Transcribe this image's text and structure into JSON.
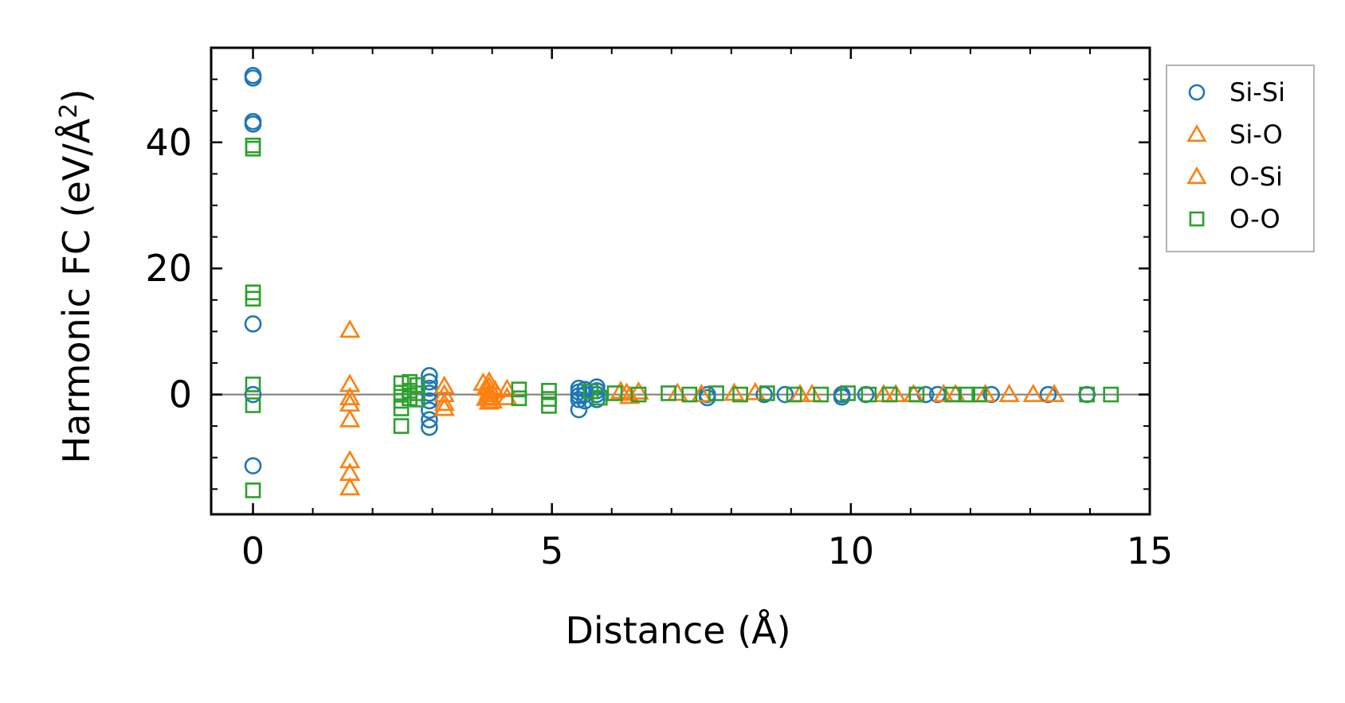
{
  "chart_data": {
    "type": "scatter",
    "title": "",
    "xlabel": "Distance (Å)",
    "ylabel_main": "Harmonic FC (eV/Å",
    "ylabel_sup": "2",
    "ylabel_close": ")",
    "xlim": [
      -0.7,
      15.0
    ],
    "ylim": [
      -19,
      55
    ],
    "xticks": [
      0,
      5,
      10,
      15
    ],
    "xtick_labels": [
      "0",
      "5",
      "10",
      "15"
    ],
    "yticks": [
      0,
      20,
      40
    ],
    "ytick_labels": [
      "0",
      "20",
      "40"
    ],
    "grid": false,
    "zero_line": true,
    "legend_position": "right, outside plot",
    "series": [
      {
        "name": "Si-Si",
        "marker": "circle",
        "color": "#1f77b4",
        "points": [
          [
            0,
            50.6
          ],
          [
            0,
            50.2
          ],
          [
            0,
            43.3
          ],
          [
            0,
            42.9
          ],
          [
            0,
            11.2
          ],
          [
            0,
            0
          ],
          [
            0,
            -11.3
          ],
          [
            2.95,
            3.0
          ],
          [
            2.95,
            2.0
          ],
          [
            2.95,
            1.0
          ],
          [
            2.95,
            0.2
          ],
          [
            2.95,
            -1.0
          ],
          [
            2.95,
            -2.5
          ],
          [
            2.95,
            -4.0
          ],
          [
            2.95,
            -5.2
          ],
          [
            5.45,
            1.0
          ],
          [
            5.45,
            0.4
          ],
          [
            5.45,
            -0.2
          ],
          [
            5.45,
            -0.8
          ],
          [
            5.45,
            -2.4
          ],
          [
            5.55,
            0.8
          ],
          [
            5.55,
            0.0
          ],
          [
            5.55,
            -1.0
          ],
          [
            5.75,
            1.2
          ],
          [
            5.75,
            0.6
          ],
          [
            5.75,
            0.0
          ],
          [
            5.75,
            -0.8
          ],
          [
            7.6,
            0.0
          ],
          [
            7.6,
            -0.5
          ],
          [
            8.55,
            0.0
          ],
          [
            8.9,
            0.0
          ],
          [
            9.85,
            0.0
          ],
          [
            9.85,
            -0.4
          ],
          [
            10.25,
            0.0
          ],
          [
            11.25,
            0.0
          ],
          [
            11.45,
            0.0
          ],
          [
            12.35,
            0.0
          ],
          [
            13.3,
            0.0
          ],
          [
            13.95,
            0.0
          ]
        ]
      },
      {
        "name": "Si-O",
        "marker": "triangle",
        "color": "#ff7f0e",
        "points": [
          [
            1.62,
            10.2
          ],
          [
            1.62,
            1.6
          ],
          [
            1.62,
            -0.5
          ],
          [
            1.62,
            -1.5
          ],
          [
            1.62,
            -4.0
          ],
          [
            1.62,
            -10.5
          ],
          [
            1.62,
            -12.5
          ],
          [
            1.62,
            -14.8
          ],
          [
            3.2,
            1.3
          ],
          [
            3.2,
            0.0
          ],
          [
            3.2,
            -1.4
          ],
          [
            3.2,
            -2.2
          ],
          [
            3.95,
            2.0
          ],
          [
            3.95,
            1.2
          ],
          [
            3.95,
            0.4
          ],
          [
            3.95,
            -0.4
          ],
          [
            3.95,
            -1.2
          ],
          [
            4.25,
            0.8
          ],
          [
            4.25,
            -0.5
          ],
          [
            6.15,
            0.5
          ],
          [
            6.25,
            0.2
          ],
          [
            6.3,
            -0.3
          ],
          [
            6.45,
            0.4
          ],
          [
            7.1,
            0.2
          ],
          [
            7.5,
            0.0
          ],
          [
            8.05,
            0.2
          ],
          [
            8.4,
            0.3
          ],
          [
            9.15,
            0.0
          ],
          [
            9.35,
            0.0
          ],
          [
            10.55,
            0.0
          ],
          [
            10.75,
            0.0
          ],
          [
            11.05,
            0.0
          ],
          [
            11.55,
            0.0
          ],
          [
            11.75,
            0.0
          ],
          [
            12.25,
            0.0
          ],
          [
            12.65,
            0.0
          ],
          [
            13.05,
            0.0
          ],
          [
            13.4,
            0.0
          ]
        ]
      },
      {
        "name": "O-Si",
        "marker": "triangle",
        "color": "#ff7f0e",
        "points": [
          [
            3.85,
            1.8
          ],
          [
            3.9,
            1.0
          ],
          [
            3.95,
            0.0
          ],
          [
            4.0,
            -1.0
          ],
          [
            3.9,
            -0.6
          ],
          [
            4.05,
            0.6
          ]
        ]
      },
      {
        "name": "O-O",
        "marker": "square",
        "color": "#2ca02c",
        "points": [
          [
            0,
            39.5
          ],
          [
            0,
            39.0
          ],
          [
            0,
            16.2
          ],
          [
            0,
            15.2
          ],
          [
            0,
            1.6
          ],
          [
            0,
            -1.7
          ],
          [
            0,
            -15.2
          ],
          [
            2.48,
            1.8
          ],
          [
            2.48,
            0.3
          ],
          [
            2.48,
            -1.0
          ],
          [
            2.48,
            -2.2
          ],
          [
            2.48,
            -5.0
          ],
          [
            2.62,
            2.0
          ],
          [
            2.62,
            0.6
          ],
          [
            2.62,
            -0.6
          ],
          [
            2.75,
            1.5
          ],
          [
            2.75,
            0.2
          ],
          [
            2.75,
            -0.8
          ],
          [
            4.45,
            0.8
          ],
          [
            4.45,
            -0.6
          ],
          [
            4.95,
            0.6
          ],
          [
            4.95,
            -0.7
          ],
          [
            4.95,
            -1.8
          ],
          [
            5.65,
            0.5
          ],
          [
            5.8,
            -0.5
          ],
          [
            6.05,
            0.2
          ],
          [
            6.45,
            0.0
          ],
          [
            6.95,
            0.2
          ],
          [
            7.3,
            0.0
          ],
          [
            7.75,
            0.2
          ],
          [
            8.15,
            0.0
          ],
          [
            8.6,
            0.2
          ],
          [
            9.05,
            0.0
          ],
          [
            9.5,
            0.0
          ],
          [
            9.95,
            0.2
          ],
          [
            10.3,
            0.0
          ],
          [
            10.65,
            0.0
          ],
          [
            11.1,
            0.0
          ],
          [
            11.7,
            0.0
          ],
          [
            11.95,
            0.0
          ],
          [
            12.15,
            0.0
          ],
          [
            13.95,
            0.0
          ],
          [
            14.35,
            0.0
          ]
        ]
      }
    ]
  }
}
